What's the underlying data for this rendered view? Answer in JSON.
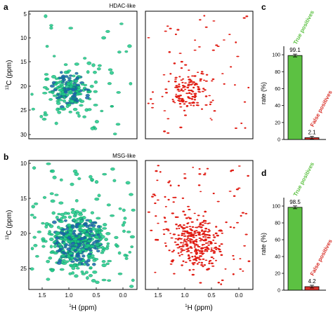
{
  "figure": {
    "panels": {
      "a": {
        "letter": "a",
        "label": "HDAC-like",
        "y_ticks": [
          "5",
          "10",
          "15",
          "20",
          "25",
          "30"
        ],
        "y_axis_label": "C (ppm)",
        "y_axis_sup": "13"
      },
      "b": {
        "letter": "b",
        "label": "MSG-like",
        "y_ticks": [
          "10",
          "15",
          "20",
          "25"
        ],
        "y_axis_label": "C (ppm)",
        "y_axis_sup": "13",
        "x_ticks": [
          "1.5",
          "1.0",
          "0.5",
          "0.0"
        ],
        "x_axis_label": "H (ppm)",
        "x_axis_sup": "1"
      },
      "b_right": {
        "x_ticks": [
          "1.5",
          "1.0",
          "0.5",
          "0.0"
        ],
        "x_axis_label": "H (ppm)",
        "x_axis_sup": "1"
      },
      "c": {
        "letter": "c"
      },
      "d": {
        "letter": "d"
      }
    },
    "colors": {
      "reference_peaks": "#1fc98a",
      "reference_core": "#1a5fb0",
      "predicted_peaks": "#e01b12",
      "true_bar": "#5cc142",
      "false_bar": "#d8312a"
    }
  },
  "chart_data": [
    {
      "panel": "c",
      "type": "bar",
      "categories": [
        "True positives",
        "False positives"
      ],
      "values": [
        99.1,
        2.1
      ],
      "value_labels": [
        "99.1",
        "2.1"
      ],
      "ylabel": "rate (%)",
      "yticks": [
        "0",
        "20",
        "40",
        "60",
        "80",
        "100"
      ],
      "ylim": [
        0,
        110
      ],
      "grid": false
    },
    {
      "panel": "d",
      "type": "bar",
      "categories": [
        "True positives",
        "False positives"
      ],
      "values": [
        98.5,
        4.2
      ],
      "value_labels": [
        "98.5",
        "4.2"
      ],
      "ylabel": "rate (%)",
      "yticks": [
        "0",
        "20",
        "40",
        "60",
        "80",
        "100"
      ],
      "ylim": [
        0,
        110
      ],
      "grid": false
    }
  ]
}
